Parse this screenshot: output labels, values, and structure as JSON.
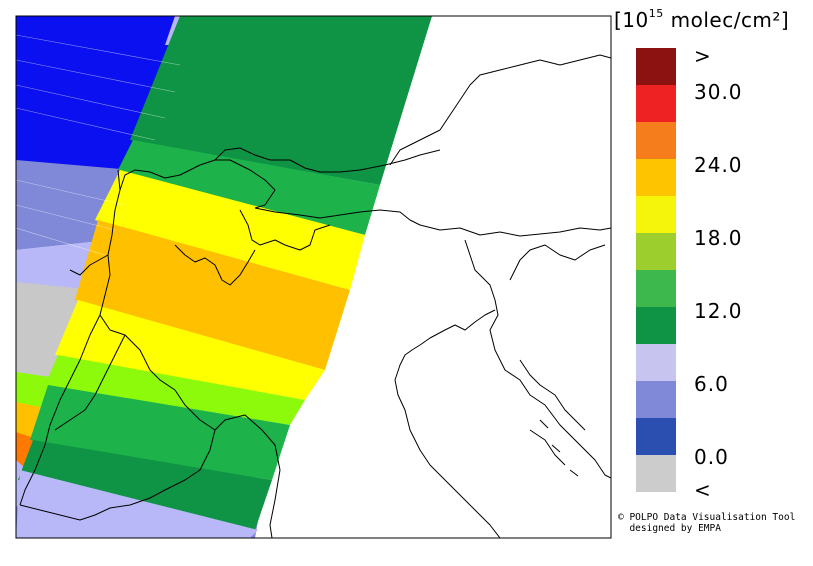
{
  "legend": {
    "unit_base": "[10",
    "unit_exp": "15",
    "unit_rest": " molec/cm²]",
    "ticks": [
      ">",
      "30.0",
      "24.0",
      "18.0",
      "12.0",
      "6.0",
      "0.0",
      "<"
    ],
    "bins": [
      {
        "label": ">",
        "color": "#8c1212"
      },
      {
        "label": "27-30",
        "color": "#ee2222"
      },
      {
        "label": "24-27",
        "color": "#f57d1c"
      },
      {
        "label": "21-24",
        "color": "#ffc400"
      },
      {
        "label": "18-21",
        "color": "#f5f50c"
      },
      {
        "label": "15-18",
        "color": "#9ccf2e"
      },
      {
        "label": "12-15",
        "color": "#3db84d"
      },
      {
        "label": "9-12",
        "color": "#0e9444"
      },
      {
        "label": "6-9",
        "color": "#c8c4f0"
      },
      {
        "label": "3-6",
        "color": "#8088d8"
      },
      {
        "label": "0-3",
        "color": "#2a4fb0"
      },
      {
        "label": "<",
        "color": "#cccccc"
      }
    ]
  },
  "credit": {
    "line1": "© POLPO Data Visualisation Tool",
    "line2": "  designed by EMPA"
  },
  "swath_colors": {
    "dark_blue": "#0a10f0",
    "slate": "#8088d8",
    "lavender": "#b8b8f8",
    "dark_green": "#0e9444",
    "green": "#1db34a",
    "lime": "#8cfa0a",
    "yellow": "#ffff00",
    "orange": "#ffc000",
    "gray": "#c8c8c8",
    "red_orange": "#ff7800"
  }
}
